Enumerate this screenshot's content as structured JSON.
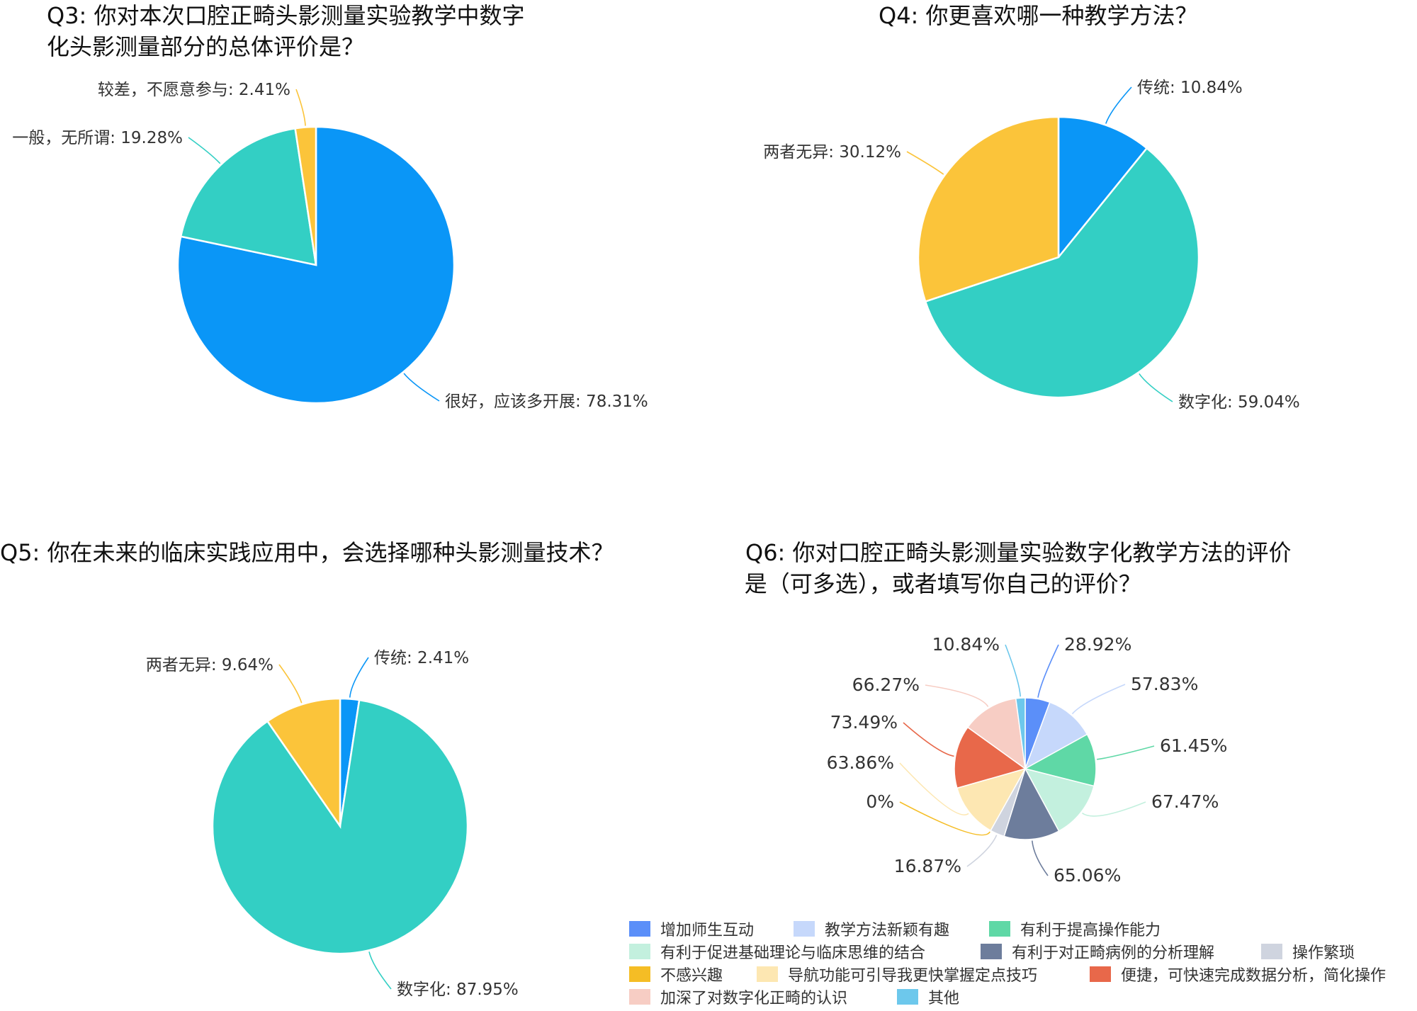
{
  "chart_data": [
    {
      "type": "pie",
      "title": "Q3:  你对本次口腔正畸头影测量实验教学中数字化头影测量部分的总体评价是？",
      "title_lines": [
        "Q3:  你对本次口腔正畸头影测量实验教学中数字",
        "化头影测量部分的总体评价是？"
      ],
      "slices": [
        {
          "label": "很好，应该多开展",
          "value": 78.31,
          "display": "很好，应该多开展: 78.31%",
          "color": "#0a96f7"
        },
        {
          "label": "一般，无所谓",
          "value": 19.28,
          "display": "一般，无所谓: 19.28%",
          "color": "#33cfc4"
        },
        {
          "label": "较差，不愿意参与",
          "value": 2.41,
          "display": "较差，不愿意参与: 2.41%",
          "color": "#fbc43a"
        }
      ]
    },
    {
      "type": "pie",
      "title": "Q4:  你更喜欢哪一种教学方法？",
      "title_lines": [
        "Q4:  你更喜欢哪一种教学方法？"
      ],
      "slices": [
        {
          "label": "传统",
          "value": 10.84,
          "display": "传统: 10.84%",
          "color": "#0a96f7"
        },
        {
          "label": "数字化",
          "value": 59.04,
          "display": "数字化: 59.04%",
          "color": "#33cfc4"
        },
        {
          "label": "两者无异",
          "value": 30.12,
          "display": "两者无异: 30.12%",
          "color": "#fbc43a"
        }
      ]
    },
    {
      "type": "pie",
      "title": "Q5:  你在未来的临床实践应用中，会选择哪种头影测量技术？",
      "title_lines": [
        "Q5:  你在未来的临床实践应用中，会选择哪种头影测量技术？"
      ],
      "slices": [
        {
          "label": "传统",
          "value": 2.41,
          "display": "传统: 2.41%",
          "color": "#0a96f7"
        },
        {
          "label": "数字化",
          "value": 87.95,
          "display": "数字化: 87.95%",
          "color": "#33cfc4"
        },
        {
          "label": "两者无异",
          "value": 9.64,
          "display": "两者无异: 9.64%",
          "color": "#fbc43a"
        }
      ]
    },
    {
      "type": "pie",
      "title": "Q6:  你对口腔正畸头影测量实验数字化教学方法的评价是（可多选），或者填写你自己的评价？",
      "title_lines": [
        "Q6:  你对口腔正畸头影测量实验数字化教学方法的评价",
        "是（可多选），或者填写你自己的评价？"
      ],
      "slices": [
        {
          "label": "增加师生互动",
          "value": 28.92,
          "display": "28.92%",
          "color": "#5b8ff9"
        },
        {
          "label": "教学方法新颖有趣",
          "value": 57.83,
          "display": "57.83%",
          "color": "#c6d8fb"
        },
        {
          "label": "有利于提高操作能力",
          "value": 61.45,
          "display": "61.45%",
          "color": "#5fd8a6"
        },
        {
          "label": "有利于促进基础理论与临床思维的结合",
          "value": 67.47,
          "display": "67.47%",
          "color": "#c3f0de"
        },
        {
          "label": "有利于对正畸病例的分析理解",
          "value": 65.06,
          "display": "65.06%",
          "color": "#6d7d9c"
        },
        {
          "label": "操作繁琐",
          "value": 16.87,
          "display": "16.87%",
          "color": "#cfd4df"
        },
        {
          "label": "不感兴趣",
          "value": 0,
          "display": "0%",
          "color": "#f5bd25"
        },
        {
          "label": "导航功能可引导我更快掌握定点技巧",
          "value": 63.86,
          "display": "63.86%",
          "color": "#fde7b2"
        },
        {
          "label": "便捷，可快速完成数据分析，简化操作",
          "value": 73.49,
          "display": "73.49%",
          "color": "#e8684a"
        },
        {
          "label": "加深了对数字化正畸的认识",
          "value": 66.27,
          "display": "66.27%",
          "color": "#f7cdc4"
        },
        {
          "label": "其他",
          "value": 10.84,
          "display": "10.84%",
          "color": "#6dc8ec"
        }
      ],
      "legend": "bottom"
    }
  ]
}
